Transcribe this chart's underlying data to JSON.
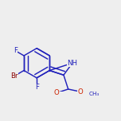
{
  "bg_color": "#eeeeee",
  "bond_color": "#2222bb",
  "atom_colors": {
    "F": "#2222bb",
    "Br": "#880000",
    "N": "#2222bb",
    "O": "#cc2200",
    "C": "#2222bb",
    "H": "#2222bb"
  },
  "bond_lw": 1.05,
  "font_size": 6.2,
  "figsize": [
    1.52,
    1.52
  ],
  "dpi": 100
}
